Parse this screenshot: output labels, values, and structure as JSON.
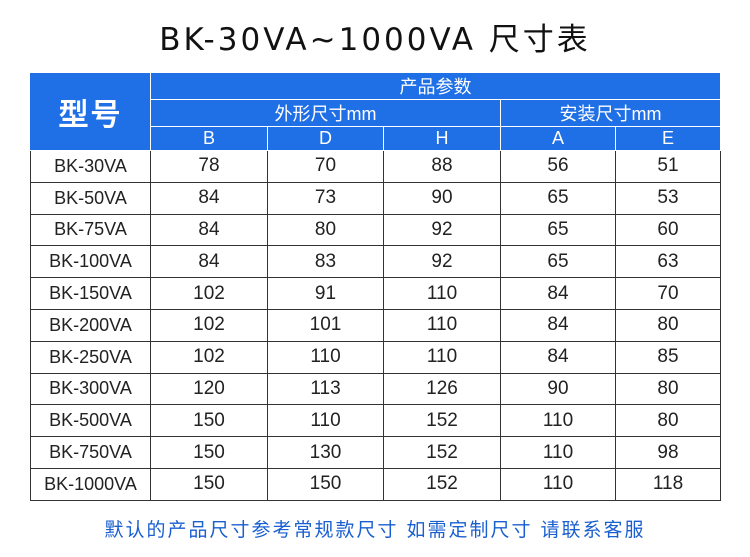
{
  "title": "BK-30VA~1000VA 尺寸表",
  "table": {
    "model_header": "型号",
    "group_header": "产品参数",
    "subgroups": [
      "外形尺寸mm",
      "安装尺寸mm"
    ],
    "columns": [
      "B",
      "D",
      "H",
      "A",
      "E"
    ],
    "rows": [
      [
        "BK-30VA",
        78,
        70,
        88,
        56,
        51
      ],
      [
        "BK-50VA",
        84,
        73,
        90,
        65,
        53
      ],
      [
        "BK-75VA",
        84,
        80,
        92,
        65,
        60
      ],
      [
        "BK-100VA",
        84,
        83,
        92,
        65,
        63
      ],
      [
        "BK-150VA",
        102,
        91,
        110,
        84,
        70
      ],
      [
        "BK-200VA",
        102,
        101,
        110,
        84,
        80
      ],
      [
        "BK-250VA",
        102,
        110,
        110,
        84,
        85
      ],
      [
        "BK-300VA",
        120,
        113,
        126,
        90,
        80
      ],
      [
        "BK-500VA",
        150,
        110,
        152,
        110,
        80
      ],
      [
        "BK-750VA",
        150,
        130,
        152,
        110,
        98
      ],
      [
        "BK-1000VA",
        150,
        150,
        152,
        110,
        118
      ]
    ]
  },
  "footer": "默认的产品尺寸参考常规款尺寸 如需定制尺寸 请联系客服"
}
